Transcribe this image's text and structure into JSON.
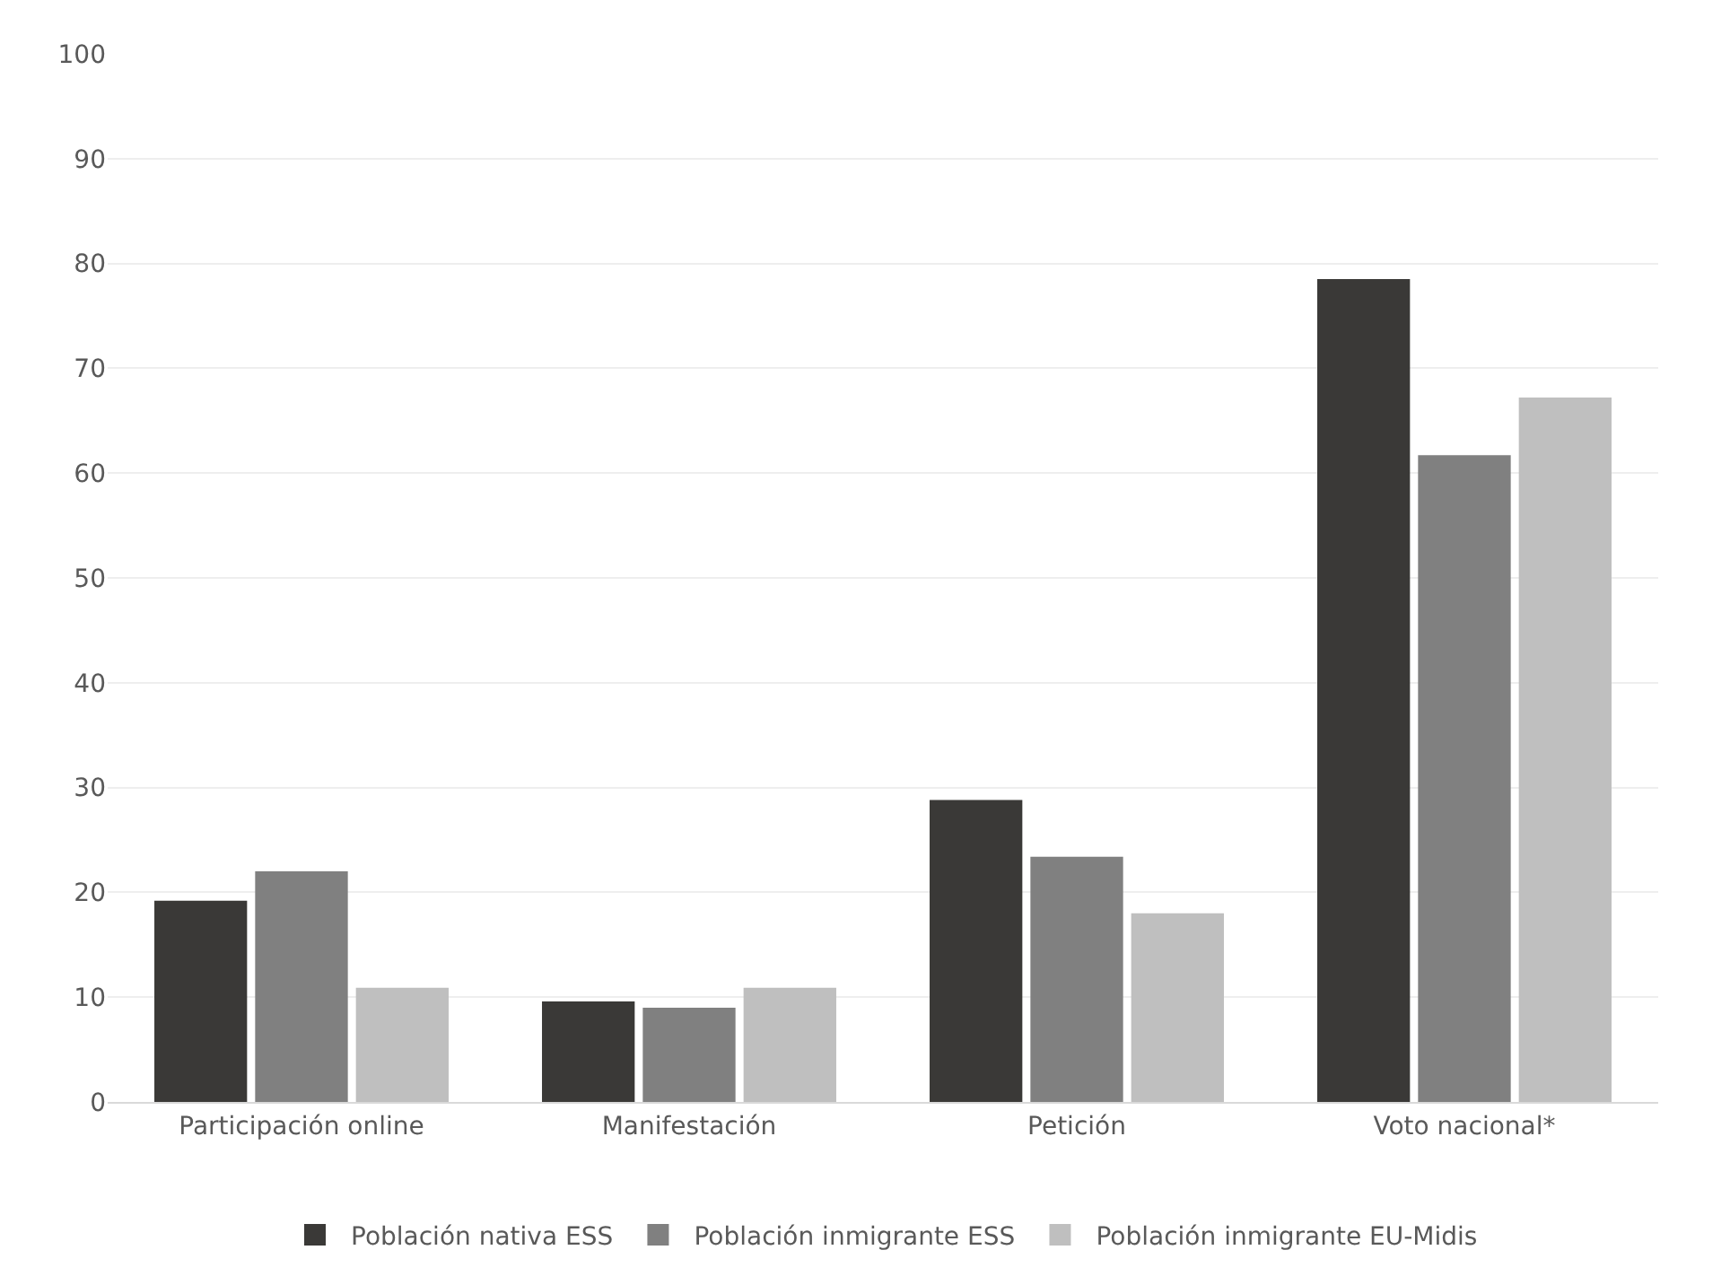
{
  "chart_data": {
    "type": "bar",
    "categories": [
      "Participación online",
      "Manifestación",
      "Petición",
      "Voto nacional*"
    ],
    "series": [
      {
        "name": "Población nativa ESS",
        "color": "#3a3937",
        "values": [
          19.2,
          9.6,
          28.8,
          78.5
        ]
      },
      {
        "name": "Población inmigrante ESS",
        "color": "#808080",
        "values": [
          22.0,
          9.0,
          23.4,
          61.7
        ]
      },
      {
        "name": "Población inmigrante EU-Midis",
        "color": "#bfbfbf",
        "values": [
          10.9,
          10.9,
          18.0,
          67.2
        ]
      }
    ],
    "ylim": [
      0,
      100
    ],
    "yticks": [
      0,
      10,
      20,
      30,
      40,
      50,
      60,
      70,
      80,
      90,
      100
    ],
    "grid": "y",
    "legend": "bottom"
  }
}
